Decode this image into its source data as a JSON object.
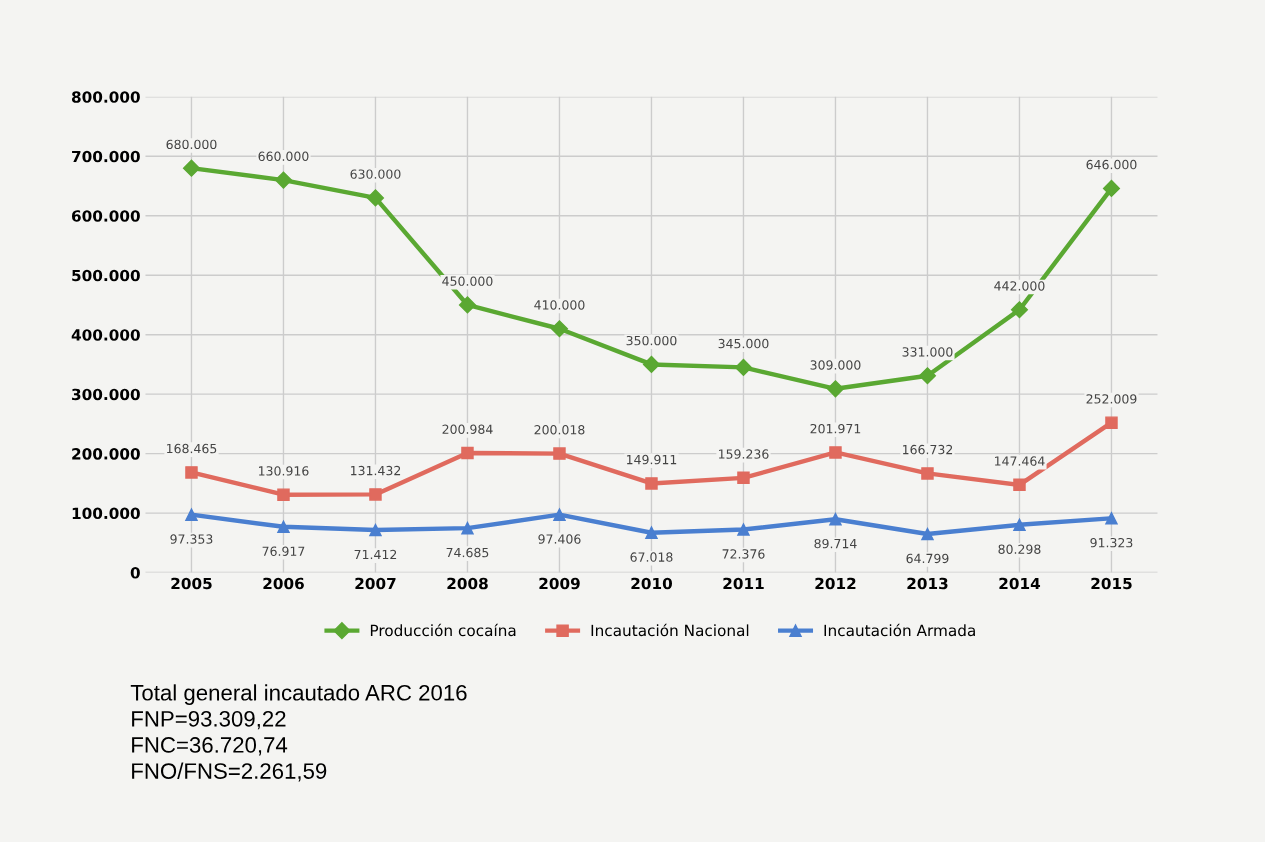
{
  "chart_data": {
    "type": "line",
    "categories": [
      "2005",
      "2006",
      "2007",
      "2008",
      "2009",
      "2010",
      "2011",
      "2012",
      "2013",
      "2014",
      "2015"
    ],
    "series": [
      {
        "name": "Producción cocaína",
        "color": "#5aa832",
        "marker": "diamond",
        "values": [
          680000,
          660000,
          630000,
          450000,
          410000,
          350000,
          345000,
          309000,
          331000,
          442000,
          646000
        ],
        "value_labels": [
          "680.000",
          "660.000",
          "630.000",
          "450.000",
          "410.000",
          "350.000",
          "345.000",
          "309.000",
          "331.000",
          "442.000",
          "646.000"
        ]
      },
      {
        "name": "Incautación Nacional",
        "color": "#e06a5e",
        "marker": "square",
        "values": [
          168465,
          130916,
          131432,
          200984,
          200018,
          149911,
          159236,
          201971,
          166732,
          147464,
          252009
        ],
        "value_labels": [
          "168.465",
          "130.916",
          "131.432",
          "200.984",
          "200.018",
          "149.911",
          "159.236",
          "201.971",
          "166.732",
          "147.464",
          "252.009"
        ]
      },
      {
        "name": "Incautación Armada",
        "color": "#4a7fd0",
        "marker": "triangle",
        "values": [
          97353,
          76917,
          71412,
          74685,
          97406,
          67018,
          72376,
          89714,
          64799,
          80298,
          91323
        ],
        "value_labels": [
          "97.353",
          "76.917",
          "71.412",
          "74.685",
          "97.406",
          "67.018",
          "72.376",
          "89.714",
          "64.799",
          "80.298",
          "91.323"
        ]
      }
    ],
    "ylim": [
      0,
      800000
    ],
    "yticks": [
      {
        "value": 0,
        "label": "0"
      },
      {
        "value": 100000,
        "label": "100.000"
      },
      {
        "value": 200000,
        "label": "200.000"
      },
      {
        "value": 300000,
        "label": "300.000"
      },
      {
        "value": 400000,
        "label": "400.000"
      },
      {
        "value": 500000,
        "label": "500.000"
      },
      {
        "value": 600000,
        "label": "600.000"
      },
      {
        "value": 700000,
        "label": "700.000"
      },
      {
        "value": 800000,
        "label": "800.000"
      }
    ],
    "grid": true,
    "legend": "bottom",
    "line_style": "solid",
    "annotations": [
      "Total general incautado ARC 2016",
      "FNP=93.309,22",
      "FNC=36.720,74",
      "FNO/FNS=2.261,59"
    ]
  }
}
